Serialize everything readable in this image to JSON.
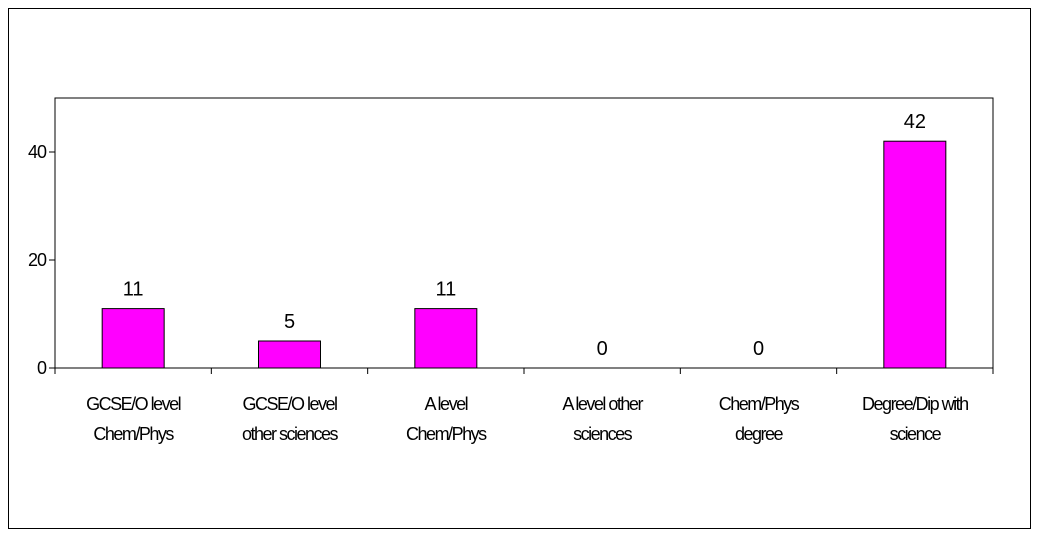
{
  "chart_data": {
    "type": "bar",
    "categories": [
      [
        "GCSE/O level",
        "Chem/Phys"
      ],
      [
        "GCSE/O level",
        "other sciences"
      ],
      [
        "A level",
        "Chem/Phys"
      ],
      [
        "A level other",
        "sciences"
      ],
      [
        "Chem/Phys",
        "degree"
      ],
      [
        "Degree/Dip with",
        "science"
      ]
    ],
    "values": [
      11,
      5,
      11,
      0,
      0,
      42
    ],
    "ylim": [
      0,
      50
    ],
    "yticks": [
      0,
      20,
      40
    ],
    "bar_color": "#ff00ff",
    "bar_outline": "#000000",
    "title": "",
    "xlabel": "",
    "ylabel": "",
    "grid": false,
    "legend": "none"
  }
}
